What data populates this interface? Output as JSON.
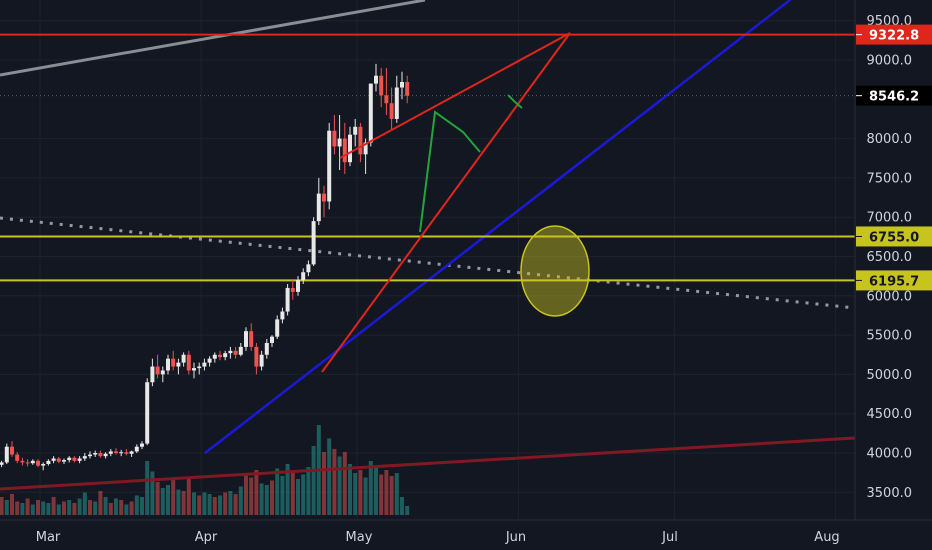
{
  "chart_data": {
    "type": "candlestick",
    "symbol_hint": "BTCUSD daily",
    "y_range": [
      3250,
      9650
    ],
    "y_ticks": [
      "9500.0",
      "9000.0",
      "8000.0",
      "7500.0",
      "7000.0",
      "6500.0",
      "6000.0",
      "5500.0",
      "5000.0",
      "4500.0",
      "4000.0",
      "3500.0"
    ],
    "x_labels": [
      "Mar",
      "Apr",
      "May",
      "Jun",
      "Jul",
      "Aug"
    ],
    "price_badges": [
      {
        "label": "9322.8",
        "value": 9322.8,
        "color": "#e0251b",
        "text_color": "#ffffff"
      },
      {
        "label": "8546.2",
        "value": 8546.2,
        "color": "#000000",
        "text_color": "#ffffff"
      },
      {
        "label": "6755.0",
        "value": 6755.0,
        "color": "#c8c41e",
        "text_color": "#131722"
      },
      {
        "label": "6195.7",
        "value": 6195.7,
        "color": "#c8c41e",
        "text_color": "#131722"
      }
    ],
    "horizontal_lines": [
      {
        "value": 9322.8,
        "color": "#e0251b"
      },
      {
        "value": 6755.0,
        "color": "#c8c41e"
      },
      {
        "value": 6195.7,
        "color": "#c8c41e"
      }
    ],
    "candles": [
      [
        3850,
        3900,
        3820,
        3880
      ],
      [
        3880,
        4120,
        3860,
        4080
      ],
      [
        4080,
        4150,
        3950,
        3980
      ],
      [
        3980,
        4010,
        3870,
        3900
      ],
      [
        3900,
        3940,
        3840,
        3880
      ],
      [
        3880,
        3920,
        3830,
        3870
      ],
      [
        3870,
        3920,
        3850,
        3900
      ],
      [
        3900,
        3920,
        3820,
        3840
      ],
      [
        3840,
        3880,
        3780,
        3860
      ],
      [
        3860,
        3920,
        3840,
        3900
      ],
      [
        3900,
        3960,
        3870,
        3930
      ],
      [
        3930,
        3950,
        3870,
        3890
      ],
      [
        3890,
        3930,
        3860,
        3910
      ],
      [
        3910,
        3960,
        3880,
        3940
      ],
      [
        3940,
        3960,
        3880,
        3900
      ],
      [
        3900,
        3960,
        3870,
        3930
      ],
      [
        3930,
        4000,
        3900,
        3960
      ],
      [
        3960,
        4020,
        3930,
        3980
      ],
      [
        3980,
        4030,
        3950,
        4000
      ],
      [
        4000,
        4030,
        3940,
        3960
      ],
      [
        3960,
        4010,
        3930,
        3990
      ],
      [
        3990,
        4050,
        3960,
        4020
      ],
      [
        4020,
        4060,
        3980,
        4000
      ],
      [
        4000,
        4040,
        3960,
        4010
      ],
      [
        4010,
        4050,
        3970,
        3990
      ],
      [
        3990,
        4030,
        3950,
        4020
      ],
      [
        4020,
        4110,
        4000,
        4080
      ],
      [
        4080,
        4150,
        4050,
        4120
      ],
      [
        4120,
        4950,
        4100,
        4900
      ],
      [
        4900,
        5200,
        4850,
        5100
      ],
      [
        5100,
        5250,
        4950,
        5000
      ],
      [
        5000,
        5100,
        4900,
        5050
      ],
      [
        5050,
        5250,
        5000,
        5200
      ],
      [
        5200,
        5300,
        5050,
        5100
      ],
      [
        5100,
        5200,
        5000,
        5150
      ],
      [
        5150,
        5280,
        5100,
        5250
      ],
      [
        5250,
        5300,
        5000,
        5050
      ],
      [
        5050,
        5150,
        4950,
        5080
      ],
      [
        5080,
        5150,
        5000,
        5100
      ],
      [
        5100,
        5200,
        5050,
        5150
      ],
      [
        5150,
        5230,
        5100,
        5200
      ],
      [
        5200,
        5280,
        5150,
        5250
      ],
      [
        5250,
        5300,
        5180,
        5220
      ],
      [
        5220,
        5300,
        5180,
        5270
      ],
      [
        5270,
        5350,
        5200,
        5300
      ],
      [
        5300,
        5350,
        5200,
        5250
      ],
      [
        5250,
        5400,
        5230,
        5350
      ],
      [
        5350,
        5600,
        5300,
        5550
      ],
      [
        5550,
        5650,
        5300,
        5350
      ],
      [
        5350,
        5400,
        5000,
        5100
      ],
      [
        5100,
        5300,
        5050,
        5250
      ],
      [
        5250,
        5450,
        5200,
        5400
      ],
      [
        5400,
        5500,
        5350,
        5480
      ],
      [
        5480,
        5750,
        5450,
        5700
      ],
      [
        5700,
        5850,
        5650,
        5800
      ],
      [
        5800,
        6150,
        5750,
        6100
      ],
      [
        6100,
        6200,
        5950,
        6050
      ],
      [
        6050,
        6250,
        6000,
        6200
      ],
      [
        6200,
        6350,
        6150,
        6300
      ],
      [
        6300,
        6450,
        6250,
        6400
      ],
      [
        6400,
        7000,
        6380,
        6950
      ],
      [
        6950,
        7500,
        6900,
        7300
      ],
      [
        7300,
        7400,
        7000,
        7200
      ],
      [
        7200,
        8200,
        7100,
        8100
      ],
      [
        8100,
        8300,
        7800,
        7900
      ],
      [
        7900,
        8300,
        7600,
        8000
      ],
      [
        8000,
        8200,
        7550,
        7700
      ],
      [
        7700,
        8150,
        7650,
        8050
      ],
      [
        8050,
        8250,
        7900,
        8150
      ],
      [
        8150,
        8200,
        7700,
        7800
      ],
      [
        7800,
        8000,
        7550,
        7950
      ],
      [
        7950,
        8700,
        7900,
        8700
      ],
      [
        8700,
        8950,
        8600,
        8800
      ],
      [
        8800,
        8900,
        8400,
        8550
      ],
      [
        8550,
        8900,
        8300,
        8450
      ],
      [
        8450,
        8650,
        8100,
        8250
      ],
      [
        8250,
        8800,
        8200,
        8650
      ],
      [
        8650,
        8850,
        8500,
        8720
      ],
      [
        8720,
        8800,
        8450,
        8546
      ]
    ],
    "volumes": [
      [
        1.2,
        "r"
      ],
      [
        1.0,
        "g"
      ],
      [
        1.4,
        "r"
      ],
      [
        0.9,
        "r"
      ],
      [
        0.8,
        "g"
      ],
      [
        1.1,
        "r"
      ],
      [
        0.7,
        "g"
      ],
      [
        1.0,
        "r"
      ],
      [
        0.9,
        "g"
      ],
      [
        0.8,
        "g"
      ],
      [
        1.2,
        "r"
      ],
      [
        0.7,
        "g"
      ],
      [
        0.9,
        "r"
      ],
      [
        1.0,
        "g"
      ],
      [
        0.8,
        "r"
      ],
      [
        1.1,
        "g"
      ],
      [
        1.5,
        "g"
      ],
      [
        1.0,
        "r"
      ],
      [
        0.9,
        "g"
      ],
      [
        1.6,
        "r"
      ],
      [
        1.2,
        "g"
      ],
      [
        0.8,
        "r"
      ],
      [
        1.1,
        "g"
      ],
      [
        1.0,
        "r"
      ],
      [
        0.7,
        "g"
      ],
      [
        0.9,
        "r"
      ],
      [
        1.3,
        "g"
      ],
      [
        1.2,
        "g"
      ],
      [
        3.6,
        "g"
      ],
      [
        2.9,
        "g"
      ],
      [
        2.2,
        "r"
      ],
      [
        1.8,
        "g"
      ],
      [
        2.0,
        "g"
      ],
      [
        2.5,
        "r"
      ],
      [
        1.7,
        "g"
      ],
      [
        1.6,
        "r"
      ],
      [
        2.4,
        "r"
      ],
      [
        1.5,
        "g"
      ],
      [
        1.3,
        "r"
      ],
      [
        1.5,
        "g"
      ],
      [
        1.4,
        "g"
      ],
      [
        1.2,
        "r"
      ],
      [
        1.3,
        "g"
      ],
      [
        1.5,
        "r"
      ],
      [
        1.6,
        "g"
      ],
      [
        1.4,
        "r"
      ],
      [
        1.9,
        "g"
      ],
      [
        2.8,
        "r"
      ],
      [
        2.5,
        "r"
      ],
      [
        3.0,
        "r"
      ],
      [
        2.1,
        "g"
      ],
      [
        2.0,
        "g"
      ],
      [
        2.3,
        "r"
      ],
      [
        3.1,
        "g"
      ],
      [
        2.6,
        "g"
      ],
      [
        3.4,
        "g"
      ],
      [
        2.8,
        "r"
      ],
      [
        2.4,
        "g"
      ],
      [
        2.7,
        "g"
      ],
      [
        3.2,
        "g"
      ],
      [
        4.6,
        "g"
      ],
      [
        6.0,
        "g"
      ],
      [
        4.2,
        "r"
      ],
      [
        5.1,
        "g"
      ],
      [
        4.4,
        "r"
      ],
      [
        3.9,
        "g"
      ],
      [
        4.2,
        "r"
      ],
      [
        3.4,
        "g"
      ],
      [
        2.8,
        "g"
      ],
      [
        3.0,
        "r"
      ],
      [
        2.5,
        "g"
      ],
      [
        3.6,
        "g"
      ],
      [
        3.2,
        "g"
      ],
      [
        2.7,
        "r"
      ],
      [
        3.0,
        "r"
      ],
      [
        2.6,
        "r"
      ],
      [
        2.8,
        "g"
      ],
      [
        1.2,
        "g"
      ],
      [
        0.6,
        "g"
      ]
    ],
    "ellipse": {
      "center_value": 6300,
      "color": "#c8c41e"
    },
    "grid": true
  }
}
